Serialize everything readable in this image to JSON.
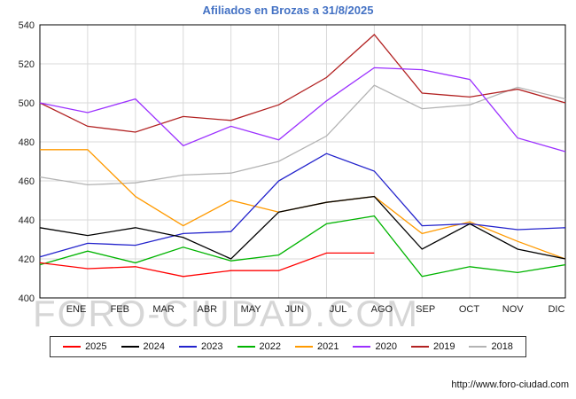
{
  "title": {
    "text": "Afiliados en Brozas a 31/8/2025",
    "color": "#4472c4"
  },
  "watermark": "FORO-CIUDAD.COM",
  "footer": {
    "url": "http://www.foro-ciudad.com"
  },
  "colors": {
    "grid": "#d9d9d9",
    "axis_border": "#000000",
    "tick_text": "#222222",
    "watermark": "#c9c9c9"
  },
  "chart_data": {
    "type": "line",
    "title": "Afiliados en Brozas a 31/8/2025",
    "xlabel": "",
    "ylabel": "",
    "categories": [
      "ENE",
      "FEB",
      "MAR",
      "ABR",
      "MAY",
      "JUN",
      "JUL",
      "AGO",
      "SEP",
      "OCT",
      "NOV",
      "DIC"
    ],
    "ylim": [
      400,
      540
    ],
    "ytick_step": 20,
    "grid": true,
    "legend_position": "bottom",
    "series": [
      {
        "name": "2025",
        "color": "#ff0000",
        "values": [
          418,
          415,
          416,
          411,
          414,
          414,
          423,
          423
        ]
      },
      {
        "name": "2024",
        "color": "#000000",
        "values": [
          436,
          432,
          436,
          431,
          420,
          444,
          449,
          452,
          425,
          438,
          425,
          420
        ]
      },
      {
        "name": "2023",
        "color": "#2323cc",
        "values": [
          421,
          428,
          427,
          433,
          434,
          460,
          474,
          465,
          437,
          438,
          435,
          436
        ]
      },
      {
        "name": "2022",
        "color": "#00b400",
        "values": [
          417,
          424,
          418,
          426,
          419,
          422,
          438,
          442,
          411,
          416,
          413,
          417
        ]
      },
      {
        "name": "2021",
        "color": "#ff9a00",
        "values": [
          476,
          476,
          452,
          437,
          450,
          444,
          449,
          452,
          433,
          439,
          429,
          420
        ]
      },
      {
        "name": "2020",
        "color": "#9b30ff",
        "values": [
          500,
          495,
          502,
          478,
          488,
          481,
          501,
          518,
          517,
          512,
          482,
          475
        ]
      },
      {
        "name": "2019",
        "color": "#b22222",
        "values": [
          500,
          488,
          485,
          493,
          491,
          499,
          513,
          535,
          505,
          503,
          507,
          500
        ]
      },
      {
        "name": "2018",
        "color": "#b3b3b3",
        "values": [
          462,
          458,
          459,
          463,
          464,
          470,
          483,
          509,
          497,
          499,
          508,
          502
        ]
      }
    ]
  }
}
